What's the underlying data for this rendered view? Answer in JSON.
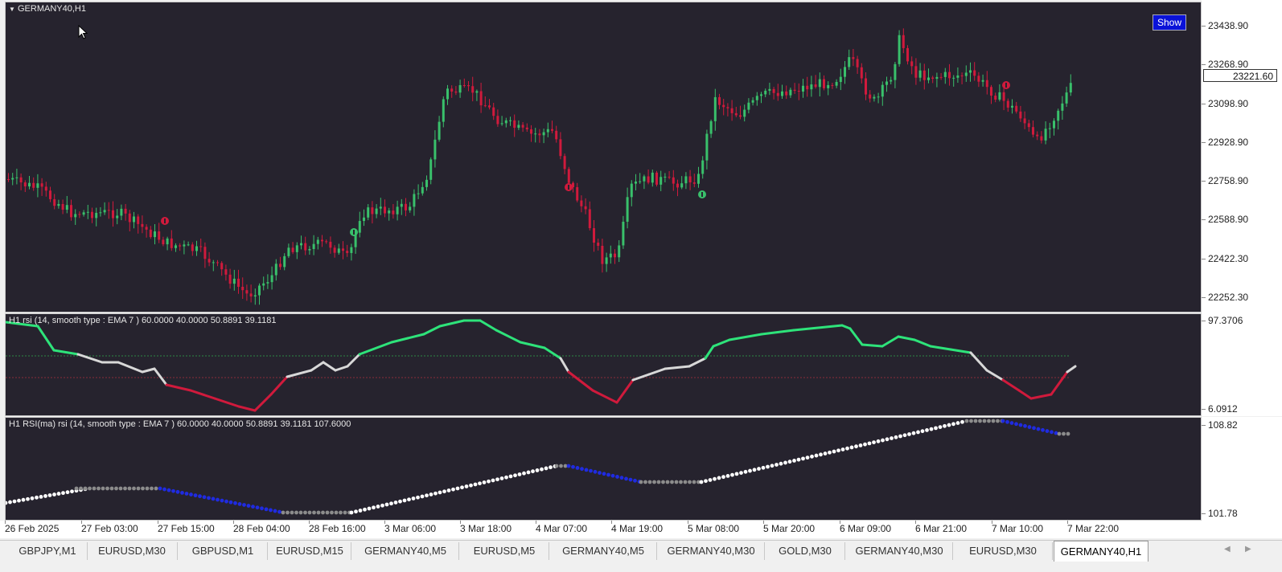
{
  "main_chart": {
    "title": "GERMANY40,H1",
    "show_button": "Show",
    "current_price": "23221.60",
    "price_labels": [
      "23438.90",
      "23268.90",
      "23098.90",
      "22928.90",
      "22758.90",
      "22588.90",
      "22422.30",
      "22252.30"
    ],
    "colors": {
      "bull": "#39c06b",
      "bear": "#d01a3c",
      "background": "#26232e"
    }
  },
  "rsi_panel": {
    "title": "H1 rsi (14, smooth type : EMA  7 ) 60.0000 40.0000 50.8891 39.1181",
    "scale_max": "97.3706",
    "scale_min": "6.0912",
    "colors": {
      "up": "#2ee37a",
      "down": "#d01a3c",
      "neutral": "#d8d8d8"
    }
  },
  "rsima_panel": {
    "title": "H1 RSI(ma) rsi (14, smooth type : EMA  7 ) 60.0000 40.0000 50.8891 39.1181 107.6000",
    "scale_max": "108.82",
    "scale_min": "101.78",
    "colors": {
      "white": "#ffffff",
      "gray": "#8c8c8c",
      "blue": "#1f2be0"
    }
  },
  "time_axis": {
    "labels": [
      "26 Feb 2025",
      "27 Feb 03:00",
      "27 Feb 15:00",
      "28 Feb 04:00",
      "28 Feb 16:00",
      "3 Mar 06:00",
      "3 Mar 18:00",
      "4 Mar 07:00",
      "4 Mar 19:00",
      "5 Mar 08:00",
      "5 Mar 20:00",
      "6 Mar 09:00",
      "6 Mar 21:00",
      "7 Mar 10:00",
      "7 Mar 22:00"
    ]
  },
  "tabs": [
    "GBPJPY,M1",
    "EURUSD,M30",
    "GBPUSD,M1",
    "EURUSD,M15",
    "GERMANY40,M5",
    "EURUSD,M5",
    "GERMANY40,M5",
    "GERMANY40,M30",
    "GOLD,M30",
    "GERMANY40,M30",
    "EURUSD,M30",
    "GERMANY40,H1"
  ],
  "active_tab": "GERMANY40,H1"
}
